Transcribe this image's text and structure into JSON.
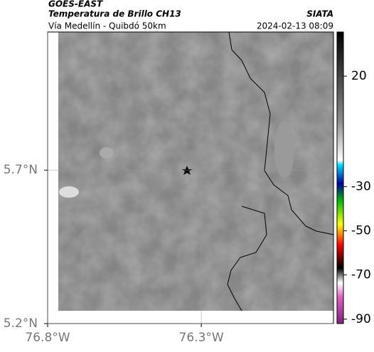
{
  "header": {
    "title": "GOES-EAST",
    "subtitle": "Temperatura de Brillo CH13",
    "region": "Vía Medellín - Quibdó 50km",
    "source": "SIATA",
    "timestamp": "2024-02-13 08:09"
  },
  "map": {
    "lonlim": [
      -76.8,
      -75.87
    ],
    "latlim": [
      5.2,
      6.15
    ],
    "lon_ticks": [
      {
        "value": -76.8,
        "label": "76.8°W"
      },
      {
        "value": -76.3,
        "label": "76.3°W"
      }
    ],
    "lat_ticks": [
      {
        "value": 5.2,
        "label": "5.2°N"
      },
      {
        "value": 5.7,
        "label": "5.7°N"
      }
    ]
  },
  "colorbar": {
    "range": [
      -92,
      40
    ],
    "ticks": [
      20,
      -30,
      -50,
      -70,
      -90
    ]
  }
}
